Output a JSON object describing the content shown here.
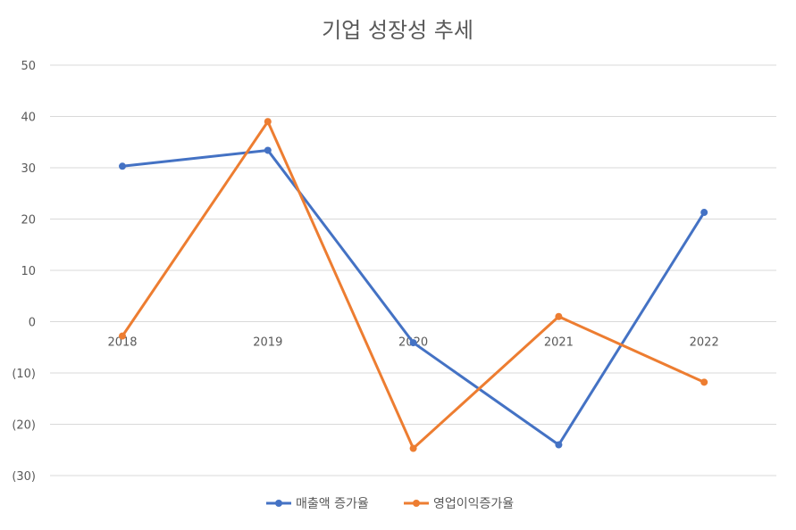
{
  "chart_data": {
    "type": "line",
    "title": "기업 성장성 추세",
    "categories": [
      "2018",
      "2019",
      "2020",
      "2021",
      "2022"
    ],
    "ylim": [
      -30,
      50
    ],
    "yticks": [
      50,
      40,
      30,
      20,
      10,
      0,
      -10,
      -20,
      -30
    ],
    "ytick_labels": [
      "50",
      "40",
      "30",
      "20",
      "10",
      "0",
      "(10)",
      "(20)",
      "(30)"
    ],
    "grid": true,
    "legend_position": "bottom",
    "xlabel": "",
    "ylabel": "",
    "series": [
      {
        "name": "매출액 증가율",
        "color": "#4472C4",
        "values": [
          30.3,
          33.4,
          -4.1,
          -24.0,
          21.3
        ]
      },
      {
        "name": "영업이익증가율",
        "color": "#ED7D31",
        "values": [
          -2.8,
          39.0,
          -24.7,
          1.0,
          -11.8
        ]
      }
    ]
  }
}
